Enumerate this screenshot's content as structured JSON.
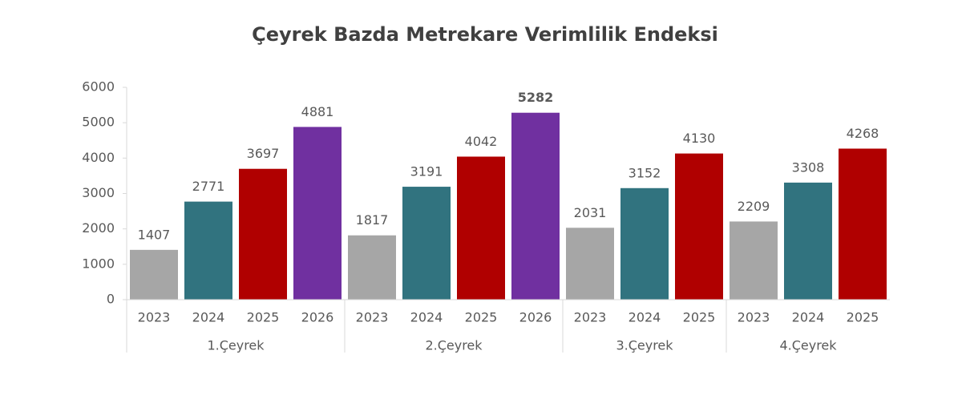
{
  "chart_data": {
    "type": "grouped-bar",
    "title": "Çeyrek Bazda Metrekare Verimlilik Endeksi",
    "groups": [
      {
        "name": "1.Çeyrek",
        "categories": [
          "2023",
          "2024",
          "2025",
          "2026"
        ],
        "values": [
          1407,
          2771,
          3697,
          4881
        ]
      },
      {
        "name": "2.Çeyrek",
        "categories": [
          "2023",
          "2024",
          "2025",
          "2026"
        ],
        "values": [
          1817,
          3191,
          4042,
          5282
        ]
      },
      {
        "name": "3.Çeyrek",
        "categories": [
          "2023",
          "2024",
          "2025"
        ],
        "values": [
          2031,
          3152,
          4130
        ]
      },
      {
        "name": "4.Çeyrek",
        "categories": [
          "2023",
          "2024",
          "2025"
        ],
        "values": [
          2209,
          3308,
          4268
        ]
      }
    ],
    "colors": [
      "#a6a6a6",
      "#31737f",
      "#b00000",
      "#7030a0"
    ],
    "bold_max": true,
    "ylim": [
      0,
      6000
    ],
    "yticks": [
      0,
      1000,
      2000,
      3000,
      4000,
      5000,
      6000
    ],
    "grid": false
  }
}
